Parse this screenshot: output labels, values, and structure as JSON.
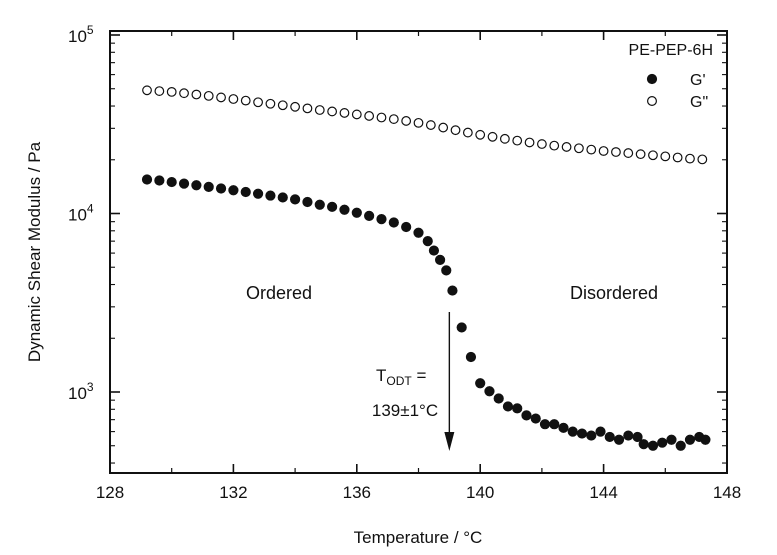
{
  "chart_data": {
    "type": "scatter",
    "title": "",
    "xlabel": "Temperature / °C",
    "ylabel": "Dynamic Shear Modulus / Pa",
    "xlim": [
      128,
      148
    ],
    "ylim": [
      300,
      100000
    ],
    "yscale": "log",
    "x_ticks": [
      128,
      132,
      136,
      140,
      144,
      148
    ],
    "x_tick_labels": [
      "128",
      "132",
      "136",
      "140",
      "144",
      "148"
    ],
    "y_ticks": [
      1000,
      10000,
      100000
    ],
    "y_tick_labels": [
      {
        "base": "10",
        "exp": "3"
      },
      {
        "base": "10",
        "exp": "4"
      },
      {
        "base": "10",
        "exp": "5"
      }
    ],
    "legend": {
      "title": "PE-PEP-6H",
      "position": "top-right",
      "entries": [
        {
          "label": "G'",
          "marker": "filled-circle"
        },
        {
          "label": "G\"",
          "marker": "open-circle"
        }
      ]
    },
    "series": [
      {
        "name": "G'",
        "marker": "filled-circle",
        "points": [
          [
            129.2,
            15500
          ],
          [
            129.6,
            15300
          ],
          [
            130.0,
            15000
          ],
          [
            130.4,
            14700
          ],
          [
            130.8,
            14400
          ],
          [
            131.2,
            14100
          ],
          [
            131.6,
            13800
          ],
          [
            132.0,
            13500
          ],
          [
            132.4,
            13200
          ],
          [
            132.8,
            12900
          ],
          [
            133.2,
            12600
          ],
          [
            133.6,
            12300
          ],
          [
            134.0,
            12000
          ],
          [
            134.4,
            11600
          ],
          [
            134.8,
            11200
          ],
          [
            135.2,
            10900
          ],
          [
            135.6,
            10500
          ],
          [
            136.0,
            10100
          ],
          [
            136.4,
            9700
          ],
          [
            136.8,
            9300
          ],
          [
            137.2,
            8900
          ],
          [
            137.6,
            8400
          ],
          [
            138.0,
            7800
          ],
          [
            138.3,
            7000
          ],
          [
            138.5,
            6200
          ],
          [
            138.7,
            5500
          ],
          [
            138.9,
            4800
          ],
          [
            139.1,
            3700
          ],
          [
            139.4,
            2300
          ],
          [
            139.7,
            1570
          ],
          [
            140.0,
            1120
          ],
          [
            140.3,
            1010
          ],
          [
            140.6,
            920
          ],
          [
            140.9,
            830
          ],
          [
            141.2,
            810
          ],
          [
            141.5,
            740
          ],
          [
            141.8,
            710
          ],
          [
            142.1,
            660
          ],
          [
            142.4,
            660
          ],
          [
            142.7,
            630
          ],
          [
            143.0,
            600
          ],
          [
            143.3,
            585
          ],
          [
            143.6,
            570
          ],
          [
            143.9,
            600
          ],
          [
            144.2,
            560
          ],
          [
            144.5,
            540
          ],
          [
            144.8,
            570
          ],
          [
            145.1,
            560
          ],
          [
            145.3,
            510
          ],
          [
            145.6,
            500
          ],
          [
            145.9,
            520
          ],
          [
            146.2,
            540
          ],
          [
            146.5,
            500
          ],
          [
            146.8,
            540
          ],
          [
            147.1,
            560
          ],
          [
            147.3,
            540
          ]
        ]
      },
      {
        "name": "G\"",
        "marker": "open-circle",
        "points": [
          [
            129.2,
            49000
          ],
          [
            129.6,
            48500
          ],
          [
            130.0,
            48000
          ],
          [
            130.4,
            47200
          ],
          [
            130.8,
            46400
          ],
          [
            131.2,
            45600
          ],
          [
            131.6,
            44700
          ],
          [
            132.0,
            43800
          ],
          [
            132.4,
            42900
          ],
          [
            132.8,
            42000
          ],
          [
            133.2,
            41200
          ],
          [
            133.6,
            40400
          ],
          [
            134.0,
            39600
          ],
          [
            134.4,
            38800
          ],
          [
            134.8,
            38000
          ],
          [
            135.2,
            37300
          ],
          [
            135.6,
            36600
          ],
          [
            136.0,
            35900
          ],
          [
            136.4,
            35200
          ],
          [
            136.8,
            34500
          ],
          [
            137.2,
            33800
          ],
          [
            137.6,
            33000
          ],
          [
            138.0,
            32200
          ],
          [
            138.4,
            31300
          ],
          [
            138.8,
            30300
          ],
          [
            139.2,
            29300
          ],
          [
            139.6,
            28400
          ],
          [
            140.0,
            27600
          ],
          [
            140.4,
            26900
          ],
          [
            140.8,
            26200
          ],
          [
            141.2,
            25600
          ],
          [
            141.6,
            25000
          ],
          [
            142.0,
            24500
          ],
          [
            142.4,
            24000
          ],
          [
            142.8,
            23600
          ],
          [
            143.2,
            23200
          ],
          [
            143.6,
            22800
          ],
          [
            144.0,
            22400
          ],
          [
            144.4,
            22100
          ],
          [
            144.8,
            21800
          ],
          [
            145.2,
            21500
          ],
          [
            145.6,
            21200
          ],
          [
            146.0,
            20900
          ],
          [
            146.4,
            20600
          ],
          [
            146.8,
            20300
          ],
          [
            147.2,
            20100
          ]
        ]
      }
    ],
    "annotations": {
      "ordered": "Ordered",
      "disordered": "Disordered",
      "todt_T": "T",
      "todt_sub": "ODT",
      "todt_eq": " =",
      "todt_value": "139±1°C",
      "arrow_x": 139
    }
  }
}
